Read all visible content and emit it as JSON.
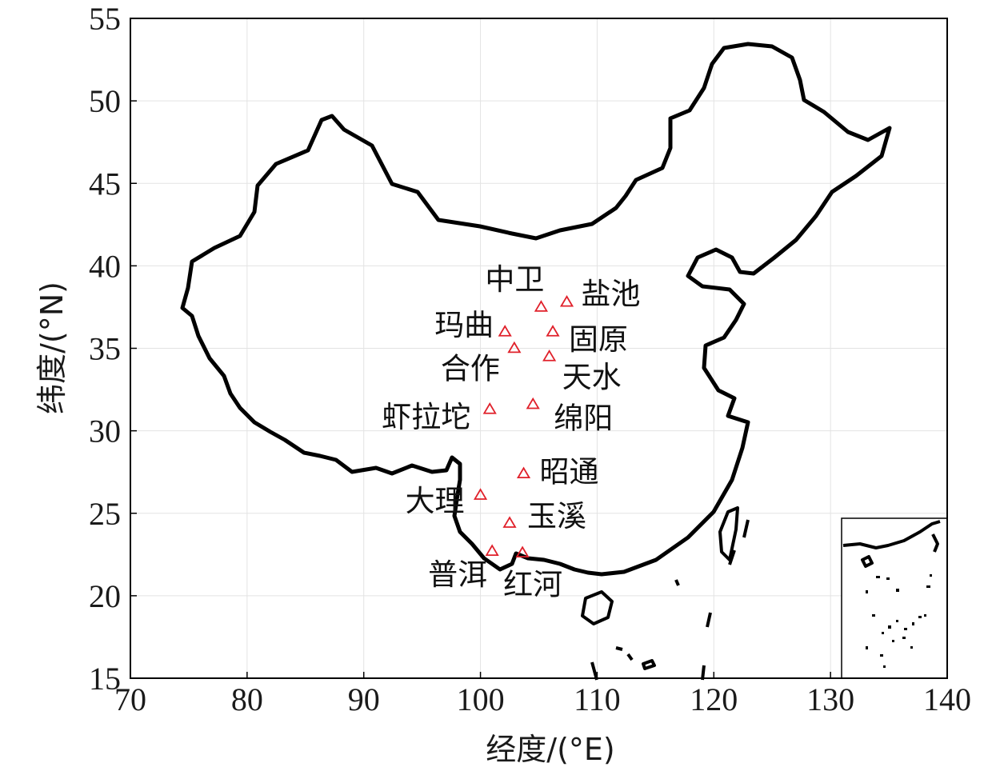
{
  "axes": {
    "xlabel": "经度/(°E)",
    "ylabel": "纬度/(°N)",
    "x_ticks": [
      "70",
      "80",
      "90",
      "100",
      "110",
      "120",
      "130",
      "140"
    ],
    "y_ticks": [
      "15",
      "20",
      "25",
      "30",
      "35",
      "40",
      "45",
      "50",
      "55"
    ],
    "xlim": [
      70,
      140
    ],
    "ylim": [
      15,
      55
    ],
    "grid": true
  },
  "map": {
    "region": "China",
    "inset": "South China Sea",
    "marker_color": "#e0202a",
    "marker_shape": "triangle"
  },
  "chart_data": {
    "type": "scatter",
    "xlabel": "经度/(°E)",
    "ylabel": "纬度/(°N)",
    "xlim": [
      70,
      140
    ],
    "ylim": [
      15,
      55
    ],
    "points": [
      {
        "label": "中卫",
        "lon": 105.2,
        "lat": 37.5
      },
      {
        "label": "盐池",
        "lon": 107.4,
        "lat": 37.8
      },
      {
        "label": "玛曲",
        "lon": 102.1,
        "lat": 36.0
      },
      {
        "label": "固原",
        "lon": 106.2,
        "lat": 36.0
      },
      {
        "label": "合作",
        "lon": 102.9,
        "lat": 35.0
      },
      {
        "label": "天水",
        "lon": 105.9,
        "lat": 34.5
      },
      {
        "label": "虾拉坨",
        "lon": 100.8,
        "lat": 31.3
      },
      {
        "label": "绵阳",
        "lon": 104.5,
        "lat": 31.6
      },
      {
        "label": "昭通",
        "lon": 103.7,
        "lat": 27.4
      },
      {
        "label": "大理",
        "lon": 100.0,
        "lat": 26.1
      },
      {
        "label": "玉溪",
        "lon": 102.5,
        "lat": 24.4
      },
      {
        "label": "普洱",
        "lon": 101.0,
        "lat": 22.7
      },
      {
        "label": "红河",
        "lon": 103.6,
        "lat": 22.6
      }
    ]
  }
}
